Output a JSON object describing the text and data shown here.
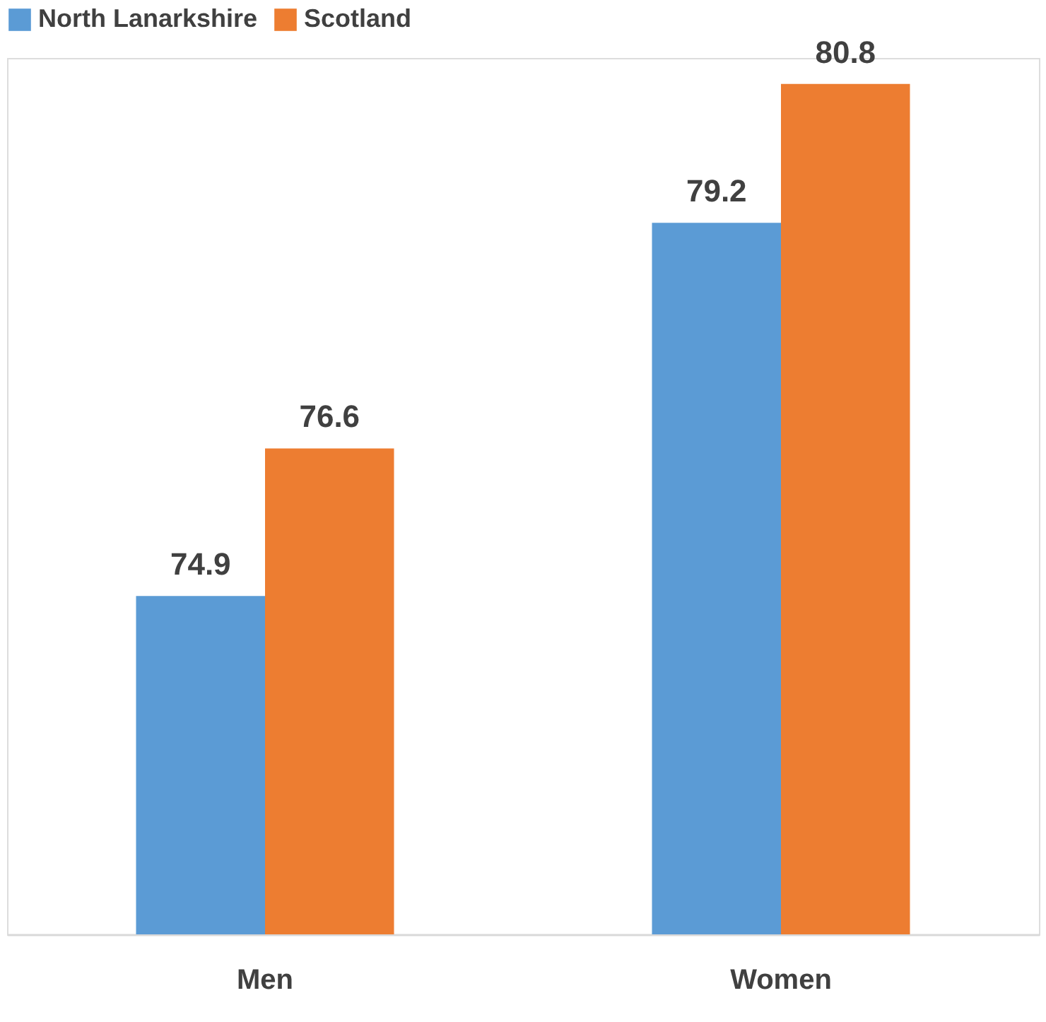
{
  "chart_data": {
    "type": "bar",
    "categories": [
      "Men",
      "Women"
    ],
    "series": [
      {
        "name": "North Lanarkshire",
        "color": "#5b9bd5",
        "values": [
          74.9,
          79.2
        ]
      },
      {
        "name": "Scotland",
        "color": "#ed7d31",
        "values": [
          76.6,
          80.8
        ]
      }
    ],
    "ylim": [
      71,
      81.1
    ],
    "data_labels": true,
    "legend": "top",
    "tick_labels": "x"
  }
}
